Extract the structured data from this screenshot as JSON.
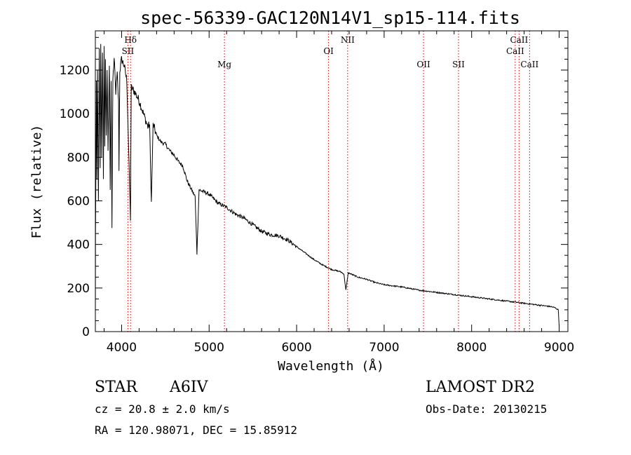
{
  "chart_data": {
    "type": "line",
    "title": "spec-56339-GAC120N14V1_sp15-114.fits",
    "xlabel": "Wavelength (Å)",
    "ylabel": "Flux (relative)",
    "xlim": [
      3700,
      9100
    ],
    "ylim": [
      0,
      1380
    ],
    "xticks": [
      4000,
      5000,
      6000,
      7000,
      8000,
      9000
    ],
    "yticks": [
      0,
      200,
      400,
      600,
      800,
      1000,
      1200
    ],
    "line_color": "#000000",
    "marker_color": "#cc0000",
    "spectrum_anchors": [
      [
        3700,
        0
      ],
      [
        3702,
        450
      ],
      [
        3712,
        1150
      ],
      [
        3718,
        700
      ],
      [
        3725,
        1200
      ],
      [
        3735,
        600
      ],
      [
        3745,
        1300
      ],
      [
        3755,
        750
      ],
      [
        3762,
        1320
      ],
      [
        3772,
        800
      ],
      [
        3782,
        1280
      ],
      [
        3792,
        700
      ],
      [
        3800,
        1310
      ],
      [
        3808,
        850
      ],
      [
        3815,
        1250
      ],
      [
        3825,
        900
      ],
      [
        3835,
        1200
      ],
      [
        3845,
        830
      ],
      [
        3860,
        1220
      ],
      [
        3870,
        650
      ],
      [
        3880,
        1150
      ],
      [
        3890,
        475
      ],
      [
        3900,
        1160
      ],
      [
        3915,
        1250
      ],
      [
        3933,
        1100
      ],
      [
        3950,
        1180
      ],
      [
        3965,
        1050
      ],
      [
        3970,
        750
      ],
      [
        3980,
        1200
      ],
      [
        4000,
        1250
      ],
      [
        4030,
        1220
      ],
      [
        4060,
        1150
      ],
      [
        4101,
        520
      ],
      [
        4110,
        1120
      ],
      [
        4150,
        1100
      ],
      [
        4200,
        1060
      ],
      [
        4250,
        1000
      ],
      [
        4300,
        940
      ],
      [
        4320,
        950
      ],
      [
        4340,
        590
      ],
      [
        4360,
        950
      ],
      [
        4400,
        900
      ],
      [
        4450,
        870
      ],
      [
        4500,
        860
      ],
      [
        4550,
        830
      ],
      [
        4600,
        810
      ],
      [
        4650,
        780
      ],
      [
        4700,
        760
      ],
      [
        4750,
        690
      ],
      [
        4800,
        650
      ],
      [
        4840,
        620
      ],
      [
        4861,
        360
      ],
      [
        4885,
        650
      ],
      [
        4950,
        640
      ],
      [
        5000,
        630
      ],
      [
        5100,
        590
      ],
      [
        5200,
        570
      ],
      [
        5300,
        540
      ],
      [
        5400,
        520
      ],
      [
        5500,
        490
      ],
      [
        5600,
        460
      ],
      [
        5700,
        445
      ],
      [
        5800,
        440
      ],
      [
        5900,
        420
      ],
      [
        6000,
        390
      ],
      [
        6100,
        360
      ],
      [
        6200,
        330
      ],
      [
        6300,
        305
      ],
      [
        6400,
        285
      ],
      [
        6500,
        275
      ],
      [
        6540,
        265
      ],
      [
        6563,
        190
      ],
      [
        6590,
        270
      ],
      [
        6700,
        250
      ],
      [
        6800,
        240
      ],
      [
        6900,
        225
      ],
      [
        7000,
        215
      ],
      [
        7200,
        205
      ],
      [
        7400,
        190
      ],
      [
        7600,
        180
      ],
      [
        7800,
        170
      ],
      [
        8000,
        160
      ],
      [
        8200,
        150
      ],
      [
        8400,
        140
      ],
      [
        8600,
        130
      ],
      [
        8700,
        125
      ],
      [
        8800,
        120
      ],
      [
        8900,
        115
      ],
      [
        8950,
        110
      ],
      [
        8990,
        100
      ],
      [
        9000,
        25
      ]
    ],
    "line_markers": [
      {
        "label": "Hδ",
        "x": 4102,
        "row": 0
      },
      {
        "label": "SII",
        "x": 4072,
        "row": 1
      },
      {
        "label": "Mg",
        "x": 5175,
        "row": 2
      },
      {
        "label": "OI",
        "x": 6365,
        "row": 1
      },
      {
        "label": "NII",
        "x": 6583,
        "row": 0
      },
      {
        "label": "OII",
        "x": 7450,
        "row": 2
      },
      {
        "label": "SII",
        "x": 7850,
        "row": 2
      },
      {
        "label": "CaII",
        "x": 8542,
        "row": 0
      },
      {
        "label": "CaII",
        "x": 8498,
        "row": 1
      },
      {
        "label": "CaII",
        "x": 8662,
        "row": 2
      }
    ]
  },
  "info": {
    "obj_class": "STAR",
    "subclass": "A6IV",
    "survey": "LAMOST DR2",
    "cz": "cz = 20.8 ± 2.0 km/s",
    "obs_date": "Obs-Date: 20130215",
    "coords": "RA = 120.98071, DEC =  15.85912"
  }
}
